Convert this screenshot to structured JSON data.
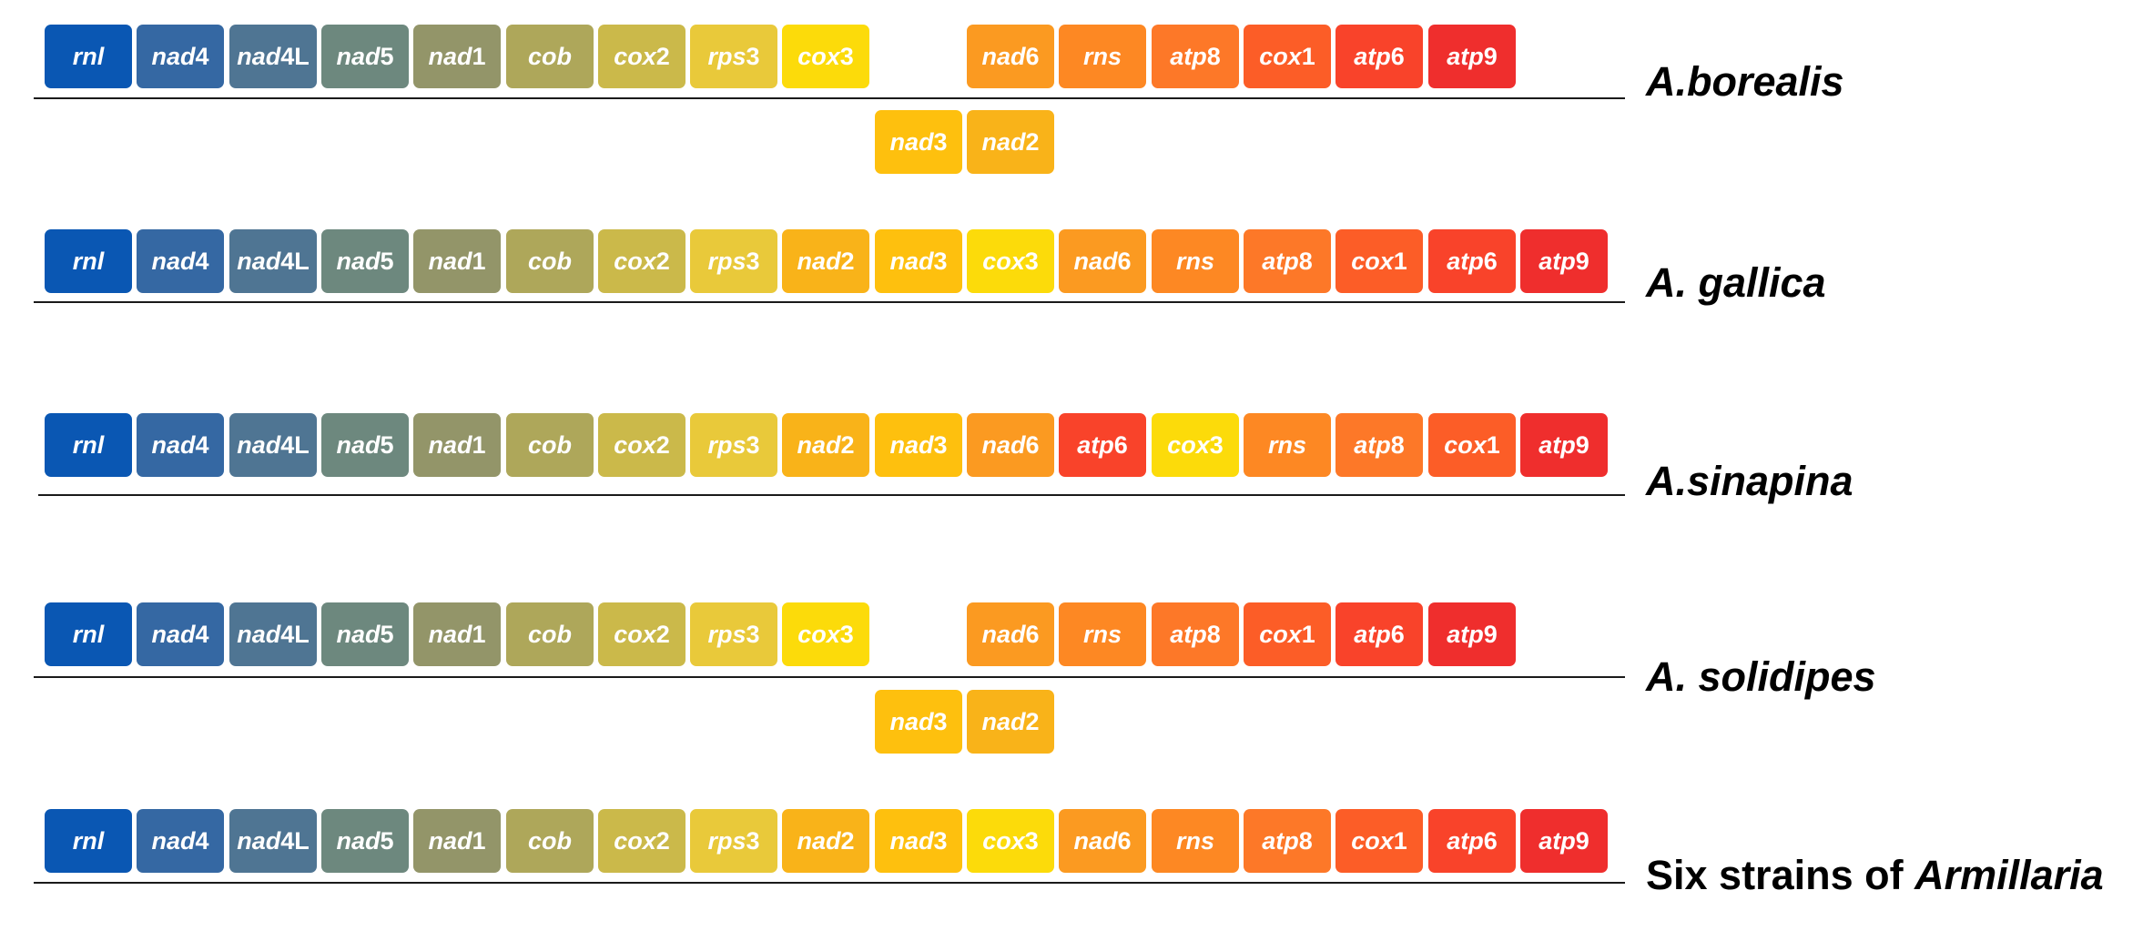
{
  "colors": {
    "rnl": "#0a57b3",
    "nad4": "#3568a3",
    "nad4L": "#4f7593",
    "nad5": "#6d887e",
    "nad1": "#939569",
    "cob": "#aea75a",
    "cox2": "#cbb94a",
    "rps3": "#e9c93a",
    "nad2": "#f9b319",
    "nad3": "#fec00e",
    "cox3": "#fcdb0a",
    "nad6": "#fb9a21",
    "rns": "#fd8823",
    "atp8": "#fd7828",
    "cox1": "#fc5d27",
    "atp6": "#f9432a",
    "atp9": "#ef2e2d"
  },
  "genes": {
    "rnl": {
      "label": "rnl",
      "suffix": ""
    },
    "nad4": {
      "label": "nad",
      "suffix": "4"
    },
    "nad4L": {
      "label": "nad",
      "suffix": "4L"
    },
    "nad5": {
      "label": "nad",
      "suffix": "5"
    },
    "nad1": {
      "label": "nad",
      "suffix": "1"
    },
    "cob": {
      "label": "cob",
      "suffix": ""
    },
    "cox2": {
      "label": "cox",
      "suffix": "2"
    },
    "rps3": {
      "label": "rps",
      "suffix": "3"
    },
    "nad2": {
      "label": "nad",
      "suffix": "2"
    },
    "nad3": {
      "label": "nad",
      "suffix": "3"
    },
    "cox3": {
      "label": "cox",
      "suffix": "3"
    },
    "nad6": {
      "label": "nad",
      "suffix": "6"
    },
    "rns": {
      "label": "rns",
      "suffix": ""
    },
    "atp8": {
      "label": "atp",
      "suffix": "8"
    },
    "cox1": {
      "label": "cox",
      "suffix": "1"
    },
    "atp6": {
      "label": "atp",
      "suffix": "6"
    },
    "atp9": {
      "label": "atp",
      "suffix": "9"
    }
  },
  "rows": [
    {
      "id": "borealis",
      "species": [
        {
          "text": "A.borealis",
          "italic": true
        }
      ],
      "top_genes": [
        "rnl",
        "nad4",
        "nad4L",
        "nad5",
        "nad1",
        "cob",
        "cox2",
        "rps3",
        "cox3",
        null,
        "nad6",
        "rns",
        "atp8",
        "cox1",
        "atp6",
        "atp9"
      ],
      "bottom_genes": [
        "nad3",
        "nad2"
      ]
    },
    {
      "id": "gallica",
      "species": [
        {
          "text": "A. gallica",
          "italic": true
        }
      ],
      "top_genes": [
        "rnl",
        "nad4",
        "nad4L",
        "nad5",
        "nad1",
        "cob",
        "cox2",
        "rps3",
        "nad2",
        "nad3",
        "cox3",
        "nad6",
        "rns",
        "atp8",
        "cox1",
        "atp6",
        "atp9"
      ],
      "bottom_genes": []
    },
    {
      "id": "sinapina",
      "species": [
        {
          "text": "A.sinapina",
          "italic": true
        }
      ],
      "top_genes": [
        "rnl",
        "nad4",
        "nad4L",
        "nad5",
        "nad1",
        "cob",
        "cox2",
        "rps3",
        "nad2",
        "nad3",
        "nad6",
        "atp6",
        "cox3",
        "rns",
        "atp8",
        "cox1",
        "atp9"
      ],
      "bottom_genes": []
    },
    {
      "id": "solidipes",
      "species": [
        {
          "text": "A. solidipes",
          "italic": true
        }
      ],
      "top_genes": [
        "rnl",
        "nad4",
        "nad4L",
        "nad5",
        "nad1",
        "cob",
        "cox2",
        "rps3",
        "cox3",
        null,
        "nad6",
        "rns",
        "atp8",
        "cox1",
        "atp6",
        "atp9"
      ],
      "bottom_genes": [
        "nad3",
        "nad2"
      ]
    },
    {
      "id": "six-strains",
      "species": [
        {
          "text": "Six strains of ",
          "italic": false
        },
        {
          "text": "Armillaria",
          "italic": true
        }
      ],
      "top_genes": [
        "rnl",
        "nad4",
        "nad4L",
        "nad5",
        "nad1",
        "cob",
        "cox2",
        "rps3",
        "nad2",
        "nad3",
        "cox3",
        "nad6",
        "rns",
        "atp8",
        "cox1",
        "atp6",
        "atp9"
      ],
      "bottom_genes": []
    }
  ]
}
